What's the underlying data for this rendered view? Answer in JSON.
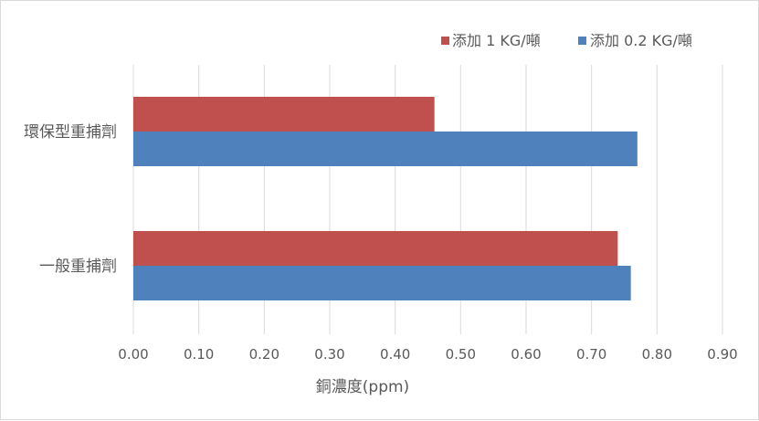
{
  "chart_data": {
    "type": "bar",
    "orientation": "horizontal",
    "categories": [
      "環保型重捕劑",
      "一般重捕劑"
    ],
    "series": [
      {
        "name": "添加 1 KG/噸",
        "color": "#C0504D",
        "values": [
          0.46,
          0.74
        ]
      },
      {
        "name": "添加 0.2 KG/噸",
        "color": "#4F81BD",
        "values": [
          0.77,
          0.76
        ]
      }
    ],
    "xlabel": "銅濃度(ppm)",
    "ylabel": "",
    "xlim": [
      0,
      0.9
    ],
    "xticks": [
      "0.00",
      "0.10",
      "0.20",
      "0.30",
      "0.40",
      "0.50",
      "0.60",
      "0.70",
      "0.80",
      "0.90"
    ],
    "grid": "vertical",
    "legend": "top-right"
  },
  "colors": {
    "grid": "#d9d9d9",
    "text": "#595959"
  }
}
